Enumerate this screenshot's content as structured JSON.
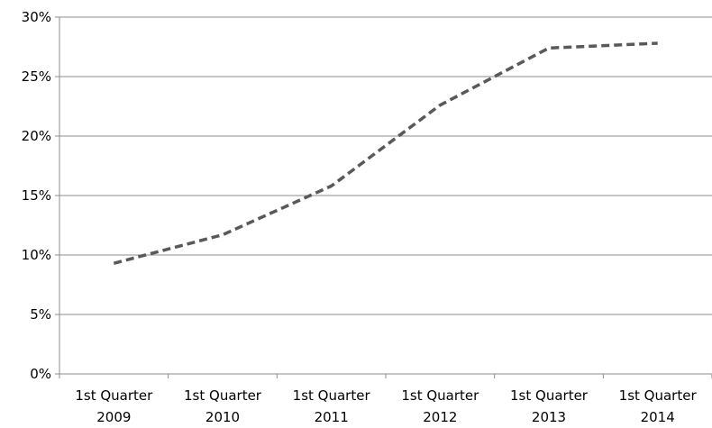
{
  "chart_data": {
    "type": "line",
    "title": "",
    "xlabel": "",
    "ylabel": "",
    "categories": [
      [
        "1st Quarter",
        "2009"
      ],
      [
        "1st Quarter",
        "2010"
      ],
      [
        "1st Quarter",
        "2011"
      ],
      [
        "1st Quarter",
        "2012"
      ],
      [
        "1st Quarter",
        "2013"
      ],
      [
        "1st Quarter",
        "2014"
      ]
    ],
    "series": [
      {
        "values": [
          9.3,
          11.7,
          15.8,
          22.6,
          27.4,
          27.8
        ]
      }
    ],
    "ylim": [
      0,
      30
    ],
    "yticks": [
      0,
      5,
      10,
      15,
      20,
      25,
      30
    ],
    "ytick_format": "%",
    "grid": true,
    "legend": "none",
    "colors": {
      "line": "#595959",
      "grid": "#8c8c8c"
    }
  }
}
